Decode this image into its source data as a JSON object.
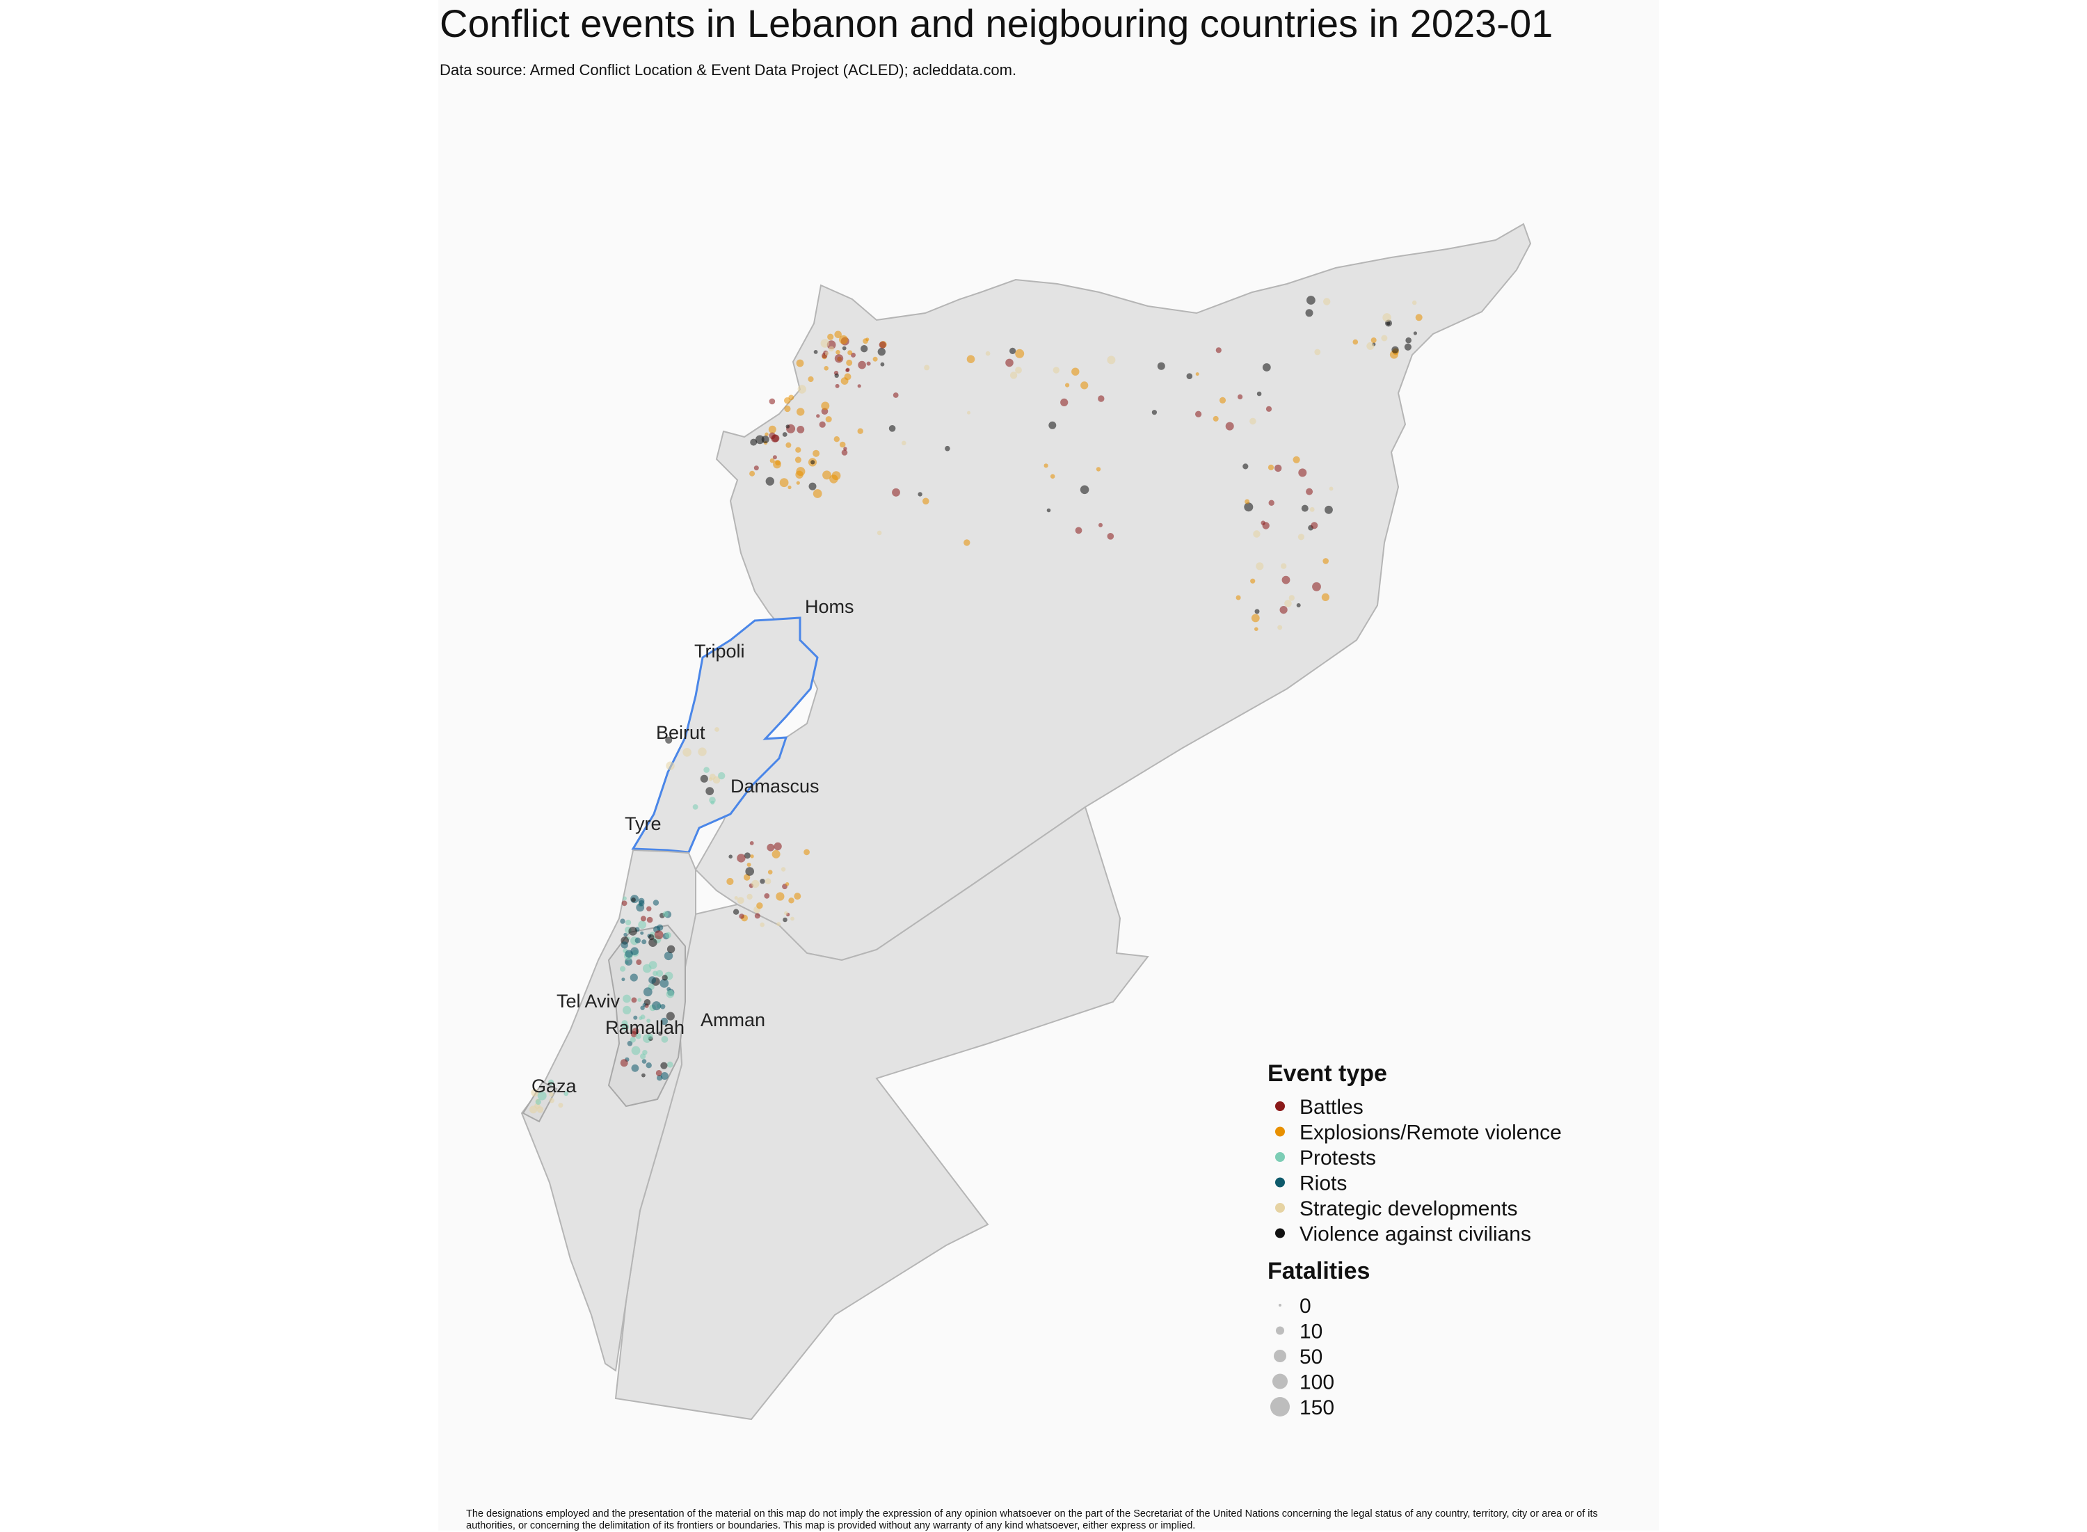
{
  "title": "Conflict events in Lebanon and neigbouring countries in 2023-01",
  "subtitle": "Data source: Armed Conflict Location & Event Data Project (ACLED); acleddata.com.",
  "cities": {
    "homs": "Homs",
    "tripoli": "Tripoli",
    "beirut": "Beirut",
    "damascus": "Damascus",
    "tyre": "Tyre",
    "tel_aviv": "Tel Aviv",
    "ramallah": "Ramallah",
    "amman": "Amman",
    "gaza": "Gaza"
  },
  "legend": {
    "event_title": "Event type",
    "event_types": [
      {
        "label": "Battles",
        "color": "#8b1a1a"
      },
      {
        "label": "Explosions/Remote violence",
        "color": "#e89000"
      },
      {
        "label": "Protests",
        "color": "#7ccdb5"
      },
      {
        "label": "Riots",
        "color": "#0e5a6b"
      },
      {
        "label": "Strategic developments",
        "color": "#e6d3a3"
      },
      {
        "label": "Violence against civilians",
        "color": "#111111"
      }
    ],
    "fatalities_title": "Fatalities",
    "fatalities": [
      "0",
      "10",
      "50",
      "100",
      "150"
    ]
  },
  "colors": {
    "land": "#e3e3e3",
    "border": "#b5b5b5",
    "lebanon_border": "#4a86e8",
    "panel": "#fafafa"
  },
  "disclaimer": "The designations employed and the presentation of the material on this map do not imply the expression of any opinion whatsoever on the part of the Secretariat of the United Nations concerning the legal status of any country, territory, city or area or of its authorities, or concerning the delimitation of its frontiers or boundaries. This map is provided without any warranty of any kind whatsoever, either express or implied."
}
